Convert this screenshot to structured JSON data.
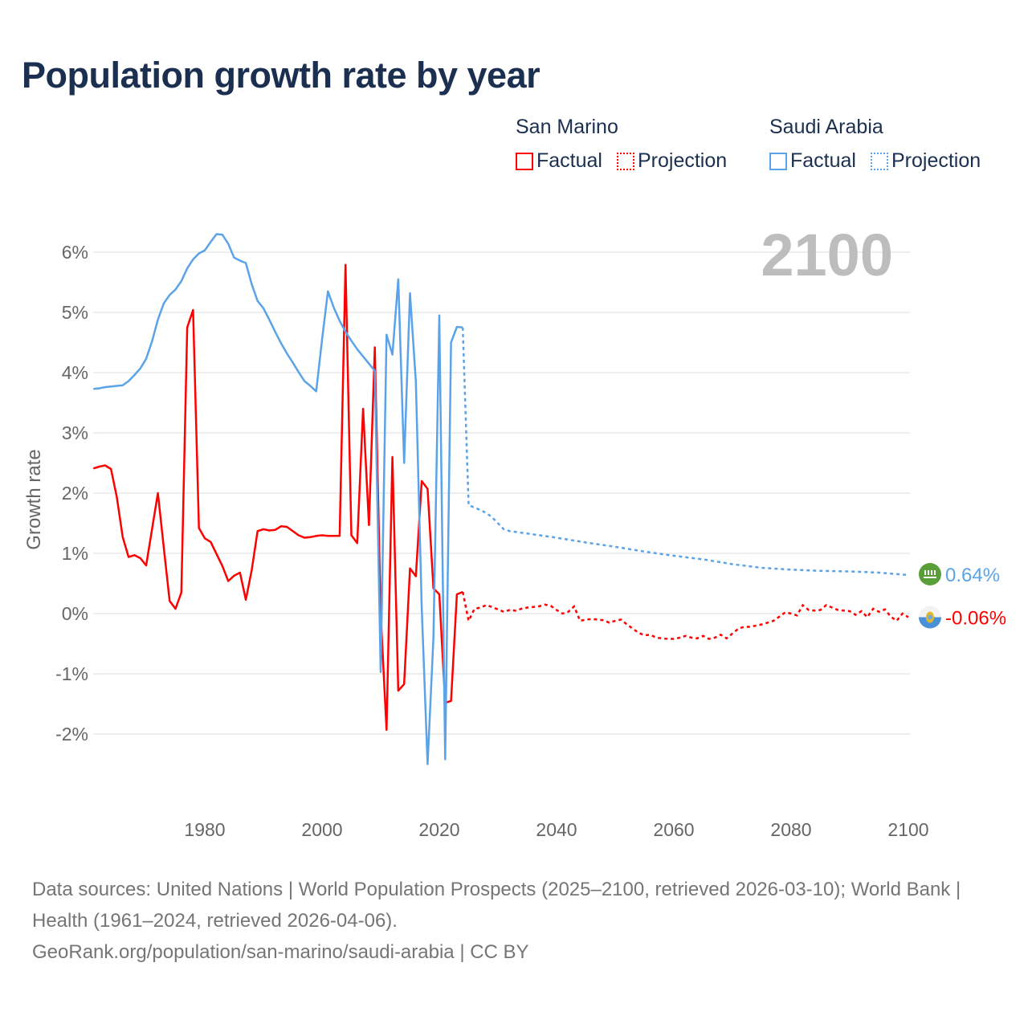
{
  "title": "Population growth rate by year",
  "legend": [
    {
      "country": "San Marino",
      "color": "#ff0000",
      "factual_label": "Factual",
      "projection_label": "Projection"
    },
    {
      "country": "Saudi Arabia",
      "color": "#5ba3e8",
      "factual_label": "Factual",
      "projection_label": "Projection"
    }
  ],
  "chart_data": {
    "type": "line",
    "title": "Population growth rate by year",
    "ylabel": "Growth rate",
    "xlabel": "",
    "xlim": [
      1961,
      2100
    ],
    "ylim": [
      -3.3,
      6.6
    ],
    "x_ticks": [
      1980,
      2000,
      2020,
      2040,
      2060,
      2080,
      2100
    ],
    "y_ticks": [
      -2,
      -1,
      0,
      1,
      2,
      3,
      4,
      5,
      6
    ],
    "y_tick_labels": [
      "-2%",
      "-1%",
      "0%",
      "1%",
      "2%",
      "3%",
      "4%",
      "5%",
      "6%"
    ],
    "grid": true,
    "current_year_label": "2100",
    "series": [
      {
        "name": "San Marino",
        "color": "#ff0000",
        "end_label": "-0.06%",
        "flag": "san-marino-flag",
        "factual": {
          "x": [
            1961,
            1962,
            1963,
            1964,
            1965,
            1966,
            1967,
            1968,
            1969,
            1970,
            1971,
            1972,
            1973,
            1974,
            1975,
            1976,
            1977,
            1978,
            1979,
            1980,
            1981,
            1982,
            1983,
            1984,
            1985,
            1986,
            1987,
            1988,
            1989,
            1990,
            1991,
            1992,
            1993,
            1994,
            1995,
            1996,
            1997,
            1998,
            1999,
            2000,
            2001,
            2002,
            2003,
            2004,
            2005,
            2006,
            2007,
            2008,
            2009,
            2010,
            2011,
            2012,
            2013,
            2014,
            2015,
            2016,
            2017,
            2018,
            2019,
            2020,
            2021,
            2022,
            2023,
            2024
          ],
          "y": [
            2.41,
            2.44,
            2.46,
            2.4,
            1.93,
            1.27,
            0.94,
            0.97,
            0.92,
            0.8,
            1.4,
            2.0,
            1.1,
            0.21,
            0.08,
            0.35,
            4.75,
            5.04,
            1.42,
            1.25,
            1.19,
            0.99,
            0.79,
            0.54,
            0.63,
            0.68,
            0.23,
            0.72,
            1.37,
            1.4,
            1.38,
            1.39,
            1.45,
            1.44,
            1.37,
            1.3,
            1.26,
            1.27,
            1.29,
            1.3,
            1.29,
            1.29,
            1.29,
            5.79,
            1.3,
            1.17,
            3.4,
            1.47,
            4.42,
            0.0,
            -1.93,
            2.6,
            -1.28,
            -1.17,
            0.75,
            0.62,
            2.2,
            2.07,
            0.42,
            0.32,
            -1.48,
            -1.45,
            0.32,
            0.36
          ]
        },
        "projection": {
          "x": [
            2024,
            2025,
            2026,
            2027,
            2028,
            2029,
            2030,
            2031,
            2032,
            2033,
            2034,
            2035,
            2036,
            2037,
            2038,
            2039,
            2040,
            2041,
            2042,
            2043,
            2044,
            2045,
            2046,
            2047,
            2048,
            2049,
            2050,
            2051,
            2052,
            2053,
            2054,
            2055,
            2056,
            2057,
            2058,
            2059,
            2060,
            2061,
            2062,
            2063,
            2064,
            2065,
            2066,
            2067,
            2068,
            2069,
            2070,
            2071,
            2072,
            2073,
            2074,
            2075,
            2076,
            2077,
            2078,
            2079,
            2080,
            2081,
            2082,
            2083,
            2084,
            2085,
            2086,
            2087,
            2088,
            2089,
            2090,
            2091,
            2092,
            2093,
            2094,
            2095,
            2096,
            2097,
            2098,
            2099,
            2100
          ],
          "y": [
            0.36,
            -0.12,
            0.08,
            0.1,
            0.14,
            0.11,
            0.07,
            0.03,
            0.06,
            0.05,
            0.08,
            0.1,
            0.11,
            0.12,
            0.15,
            0.13,
            0.06,
            0.0,
            0.03,
            0.12,
            -0.12,
            -0.1,
            -0.09,
            -0.1,
            -0.11,
            -0.15,
            -0.12,
            -0.1,
            -0.18,
            -0.25,
            -0.32,
            -0.36,
            -0.35,
            -0.4,
            -0.41,
            -0.42,
            -0.42,
            -0.4,
            -0.37,
            -0.4,
            -0.41,
            -0.37,
            -0.42,
            -0.4,
            -0.35,
            -0.41,
            -0.33,
            -0.25,
            -0.22,
            -0.22,
            -0.2,
            -0.18,
            -0.15,
            -0.12,
            -0.05,
            0.02,
            0.0,
            -0.03,
            0.14,
            0.06,
            0.05,
            0.06,
            0.14,
            0.1,
            0.06,
            0.05,
            0.04,
            -0.02,
            0.04,
            -0.06,
            0.08,
            0.03,
            0.07,
            -0.05,
            -0.12,
            0.0,
            -0.06
          ]
        }
      },
      {
        "name": "Saudi Arabia",
        "color": "#5ba3e8",
        "end_label": "0.64%",
        "flag": "saudi-arabia-flag",
        "factual": {
          "x": [
            1961,
            1962,
            1963,
            1964,
            1965,
            1966,
            1967,
            1968,
            1969,
            1970,
            1971,
            1972,
            1973,
            1974,
            1975,
            1976,
            1977,
            1978,
            1979,
            1980,
            1981,
            1982,
            1983,
            1984,
            1985,
            1986,
            1987,
            1988,
            1989,
            1990,
            1991,
            1992,
            1993,
            1994,
            1995,
            1996,
            1997,
            1998,
            1999,
            2000,
            2001,
            2002,
            2003,
            2004,
            2005,
            2006,
            2007,
            2008,
            2009,
            2010,
            2011,
            2012,
            2013,
            2014,
            2015,
            2016,
            2017,
            2018,
            2019,
            2020,
            2021,
            2022,
            2023,
            2024
          ],
          "y": [
            3.73,
            3.74,
            3.76,
            3.77,
            3.78,
            3.79,
            3.86,
            3.96,
            4.07,
            4.23,
            4.52,
            4.88,
            5.15,
            5.29,
            5.38,
            5.52,
            5.73,
            5.88,
            5.98,
            6.03,
            6.17,
            6.3,
            6.29,
            6.14,
            5.91,
            5.86,
            5.82,
            5.47,
            5.19,
            5.07,
            4.88,
            4.68,
            4.49,
            4.32,
            4.17,
            4.01,
            3.86,
            3.78,
            3.69,
            4.55,
            5.35,
            5.08,
            4.86,
            4.68,
            4.53,
            4.39,
            4.27,
            4.15,
            4.03,
            -0.97,
            4.63,
            4.3,
            5.55,
            2.5,
            5.32,
            3.85,
            0.1,
            -2.5,
            -0.4,
            4.95,
            -2.42,
            4.5,
            4.76,
            4.75
          ]
        },
        "projection": {
          "x": [
            2024,
            2025,
            2026,
            2027,
            2028,
            2029,
            2030,
            2031,
            2032,
            2035,
            2040,
            2045,
            2050,
            2055,
            2060,
            2065,
            2070,
            2075,
            2080,
            2085,
            2090,
            2095,
            2100
          ],
          "y": [
            4.75,
            1.8,
            1.76,
            1.72,
            1.67,
            1.6,
            1.5,
            1.4,
            1.37,
            1.33,
            1.26,
            1.18,
            1.11,
            1.03,
            0.96,
            0.9,
            0.82,
            0.76,
            0.73,
            0.71,
            0.7,
            0.68,
            0.64
          ]
        }
      }
    ]
  },
  "footer": {
    "sources": "Data sources: United Nations | World Population Prospects (2025–2100, retrieved 2026-03-10); World Bank | Health (1961–2024, retrieved 2026-04-06).",
    "attribution": "GeoRank.org/population/san-marino/saudi-arabia | CC BY"
  }
}
